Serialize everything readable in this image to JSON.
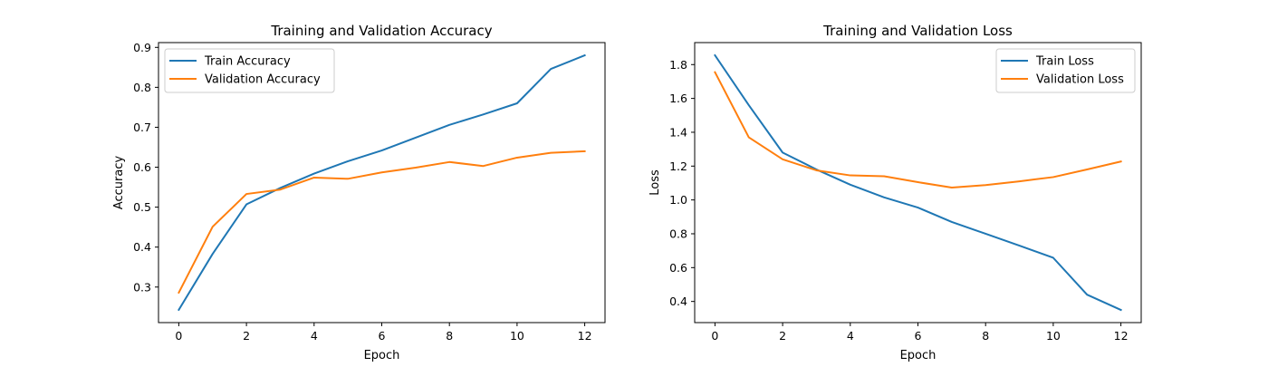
{
  "chart_data": [
    {
      "type": "line",
      "title": "Training and Validation Accuracy",
      "xlabel": "Epoch",
      "ylabel": "Accuracy",
      "x": [
        0,
        1,
        2,
        3,
        4,
        5,
        6,
        7,
        8,
        9,
        10,
        11,
        12
      ],
      "series": [
        {
          "name": "Train Accuracy",
          "color": "#1f77b4",
          "values": [
            0.243,
            0.383,
            0.507,
            0.548,
            0.584,
            0.615,
            0.642,
            0.674,
            0.706,
            0.732,
            0.76,
            0.846,
            0.88
          ]
        },
        {
          "name": "Validation Accuracy",
          "color": "#ff7f0e",
          "values": [
            0.286,
            0.451,
            0.533,
            0.544,
            0.574,
            0.571,
            0.587,
            0.599,
            0.613,
            0.603,
            0.624,
            0.636,
            0.64
          ]
        }
      ],
      "xlim": [
        -0.6,
        12.6
      ],
      "ylim": [
        0.211,
        0.912
      ],
      "xticks": [
        0,
        2,
        4,
        6,
        8,
        10,
        12
      ],
      "xtick_labels": [
        "0",
        "2",
        "4",
        "6",
        "8",
        "10",
        "12"
      ],
      "yticks": [
        0.3,
        0.4,
        0.5,
        0.6,
        0.7,
        0.8,
        0.9
      ],
      "ytick_labels": [
        "0.3",
        "0.4",
        "0.5",
        "0.6",
        "0.7",
        "0.8",
        "0.9"
      ],
      "legend": "upper-left",
      "grid": false
    },
    {
      "type": "line",
      "title": "Training and Validation Loss",
      "xlabel": "Epoch",
      "ylabel": "Loss",
      "x": [
        0,
        1,
        2,
        3,
        4,
        5,
        6,
        7,
        8,
        9,
        10,
        11,
        12
      ],
      "series": [
        {
          "name": "Train Loss",
          "color": "#1f77b4",
          "values": [
            1.855,
            1.56,
            1.28,
            1.18,
            1.09,
            1.015,
            0.955,
            0.87,
            0.8,
            0.73,
            0.658,
            0.44,
            0.35
          ]
        },
        {
          "name": "Validation Loss",
          "color": "#ff7f0e",
          "values": [
            1.755,
            1.37,
            1.24,
            1.175,
            1.145,
            1.14,
            1.105,
            1.073,
            1.088,
            1.11,
            1.135,
            1.18,
            1.227
          ]
        }
      ],
      "xlim": [
        -0.6,
        12.6
      ],
      "ylim": [
        0.275,
        1.93
      ],
      "xticks": [
        0,
        2,
        4,
        6,
        8,
        10,
        12
      ],
      "xtick_labels": [
        "0",
        "2",
        "4",
        "6",
        "8",
        "10",
        "12"
      ],
      "yticks": [
        0.4,
        0.6,
        0.8,
        1.0,
        1.2,
        1.4,
        1.6,
        1.8
      ],
      "ytick_labels": [
        "0.4",
        "0.6",
        "0.8",
        "1.0",
        "1.2",
        "1.4",
        "1.6",
        "1.8"
      ],
      "legend": "upper-right",
      "grid": false
    }
  ]
}
